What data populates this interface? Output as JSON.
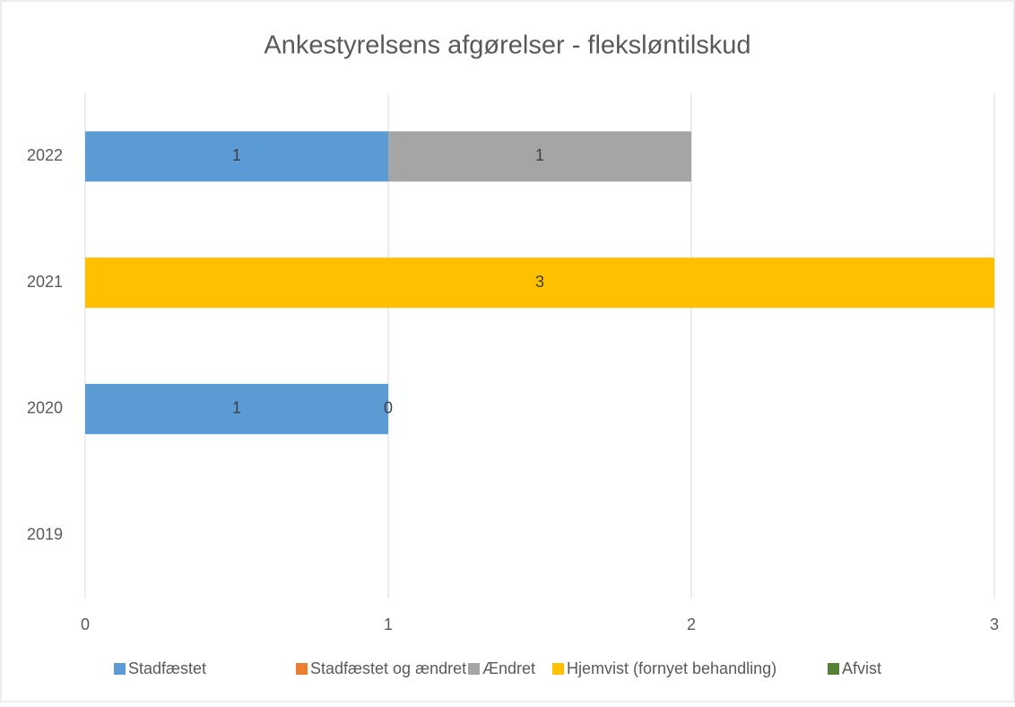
{
  "chart_data": {
    "type": "stacked_barh",
    "title": "Ankestyrelsens afgørelser - fleksløntilskud",
    "categories": [
      "2019",
      "2020",
      "2021",
      "2022"
    ],
    "series": [
      {
        "name": "Stadfæstet",
        "color": "#5b9bd5",
        "values": [
          null,
          1,
          null,
          1
        ]
      },
      {
        "name": "Stadfæstet og ændret",
        "color": "#ed7d31",
        "values": [
          null,
          null,
          null,
          null
        ]
      },
      {
        "name": "Ændret",
        "color": "#a5a5a5",
        "values": [
          null,
          0,
          null,
          1
        ]
      },
      {
        "name": "Hjemvist (fornyet behandling)",
        "color": "#ffc000",
        "values": [
          null,
          null,
          3,
          null
        ]
      },
      {
        "name": "Afvist",
        "color": "#548235",
        "values": [
          null,
          null,
          null,
          null
        ]
      }
    ],
    "xlim": [
      0,
      3
    ],
    "xticks": [
      0,
      1,
      2,
      3
    ],
    "grid": true,
    "legend": "bottom"
  }
}
